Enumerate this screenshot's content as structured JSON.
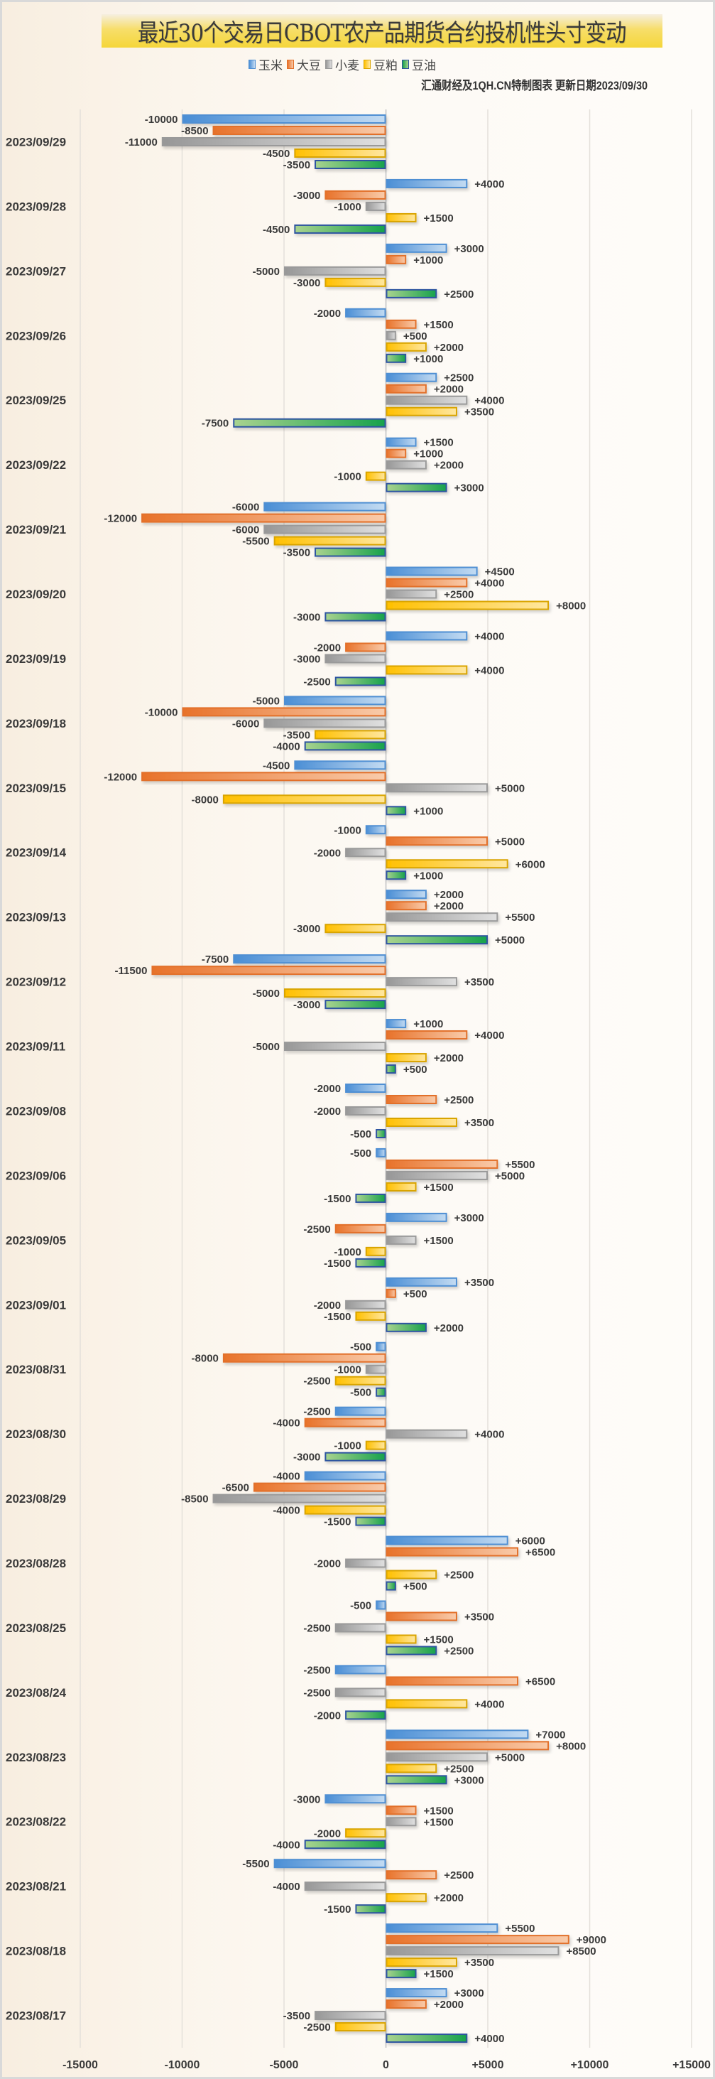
{
  "header": {
    "title": "最近30个交易日CBOT农产品期货合约投机性头寸变动",
    "subtitle": "汇通财经及1QH.CN特制图表 更新日期2023/09/30"
  },
  "legend": [
    {
      "name": "玉米",
      "icon": "blue-square-icon"
    },
    {
      "name": "大豆",
      "icon": "orange-square-icon"
    },
    {
      "name": "小麦",
      "icon": "gray-square-icon"
    },
    {
      "name": "豆粕",
      "icon": "yellow-square-icon"
    },
    {
      "name": "豆油",
      "icon": "green-square-icon"
    }
  ],
  "colors": {
    "玉米": {
      "dark": "#4a8ed5",
      "light": "#c3dbf2",
      "border": "#4f8fd3"
    },
    "大豆": {
      "dark": "#e8722a",
      "light": "#f9cbaa",
      "border": "#e2702a"
    },
    "小麦": {
      "dark": "#979797",
      "light": "#e0e0e0",
      "border": "#9a9a9a"
    },
    "豆粕": {
      "dark": "#ffc000",
      "light": "#ffe7a0",
      "border": "#d9a400"
    },
    "豆油": {
      "dark": "#17a24c",
      "light": "#a9d38f",
      "border": "#2f55a0"
    }
  },
  "chart_data": {
    "type": "bar",
    "orientation": "horizontal",
    "title": "最近30个交易日CBOT农产品期货合约投机性头寸变动",
    "subtitle": "汇通财经及1QH.CN特制图表 更新日期2023/09/30",
    "xlabel": "",
    "ylabel": "",
    "xlim": [
      -15000,
      15000
    ],
    "xticks": [
      -15000,
      -10000,
      -5000,
      0,
      5000,
      10000,
      15000
    ],
    "xtick_labels": [
      "-15000",
      "-10000",
      "-5000",
      "0",
      "+5000",
      "+10000",
      "+15000"
    ],
    "grid": true,
    "legend_position": "top-center",
    "categories": [
      "2023/09/29",
      "2023/09/28",
      "2023/09/27",
      "2023/09/26",
      "2023/09/25",
      "2023/09/22",
      "2023/09/21",
      "2023/09/20",
      "2023/09/19",
      "2023/09/18",
      "2023/09/15",
      "2023/09/14",
      "2023/09/13",
      "2023/09/12",
      "2023/09/11",
      "2023/09/08",
      "2023/09/06",
      "2023/09/05",
      "2023/09/01",
      "2023/08/31",
      "2023/08/30",
      "2023/08/29",
      "2023/08/28",
      "2023/08/25",
      "2023/08/24",
      "2023/08/23",
      "2023/08/22",
      "2023/08/21",
      "2023/08/18",
      "2023/08/17"
    ],
    "series": [
      {
        "name": "玉米",
        "values": [
          -10000,
          4000,
          3000,
          -2000,
          2500,
          1500,
          -6000,
          4500,
          4000,
          -5000,
          -4500,
          -1000,
          2000,
          -7500,
          1000,
          -2000,
          -500,
          3000,
          3500,
          -500,
          -2500,
          -4000,
          6000,
          -500,
          -2500,
          7000,
          -3000,
          -5500,
          5500,
          3000
        ]
      },
      {
        "name": "大豆",
        "values": [
          -8500,
          -3000,
          1000,
          1500,
          2000,
          1000,
          -12000,
          4000,
          -2000,
          -10000,
          -12000,
          5000,
          2000,
          -11500,
          4000,
          2500,
          5500,
          -2500,
          500,
          -8000,
          -4000,
          -6500,
          6500,
          3500,
          6500,
          8000,
          1500,
          2500,
          9000,
          2000
        ]
      },
      {
        "name": "小麦",
        "values": [
          -11000,
          -1000,
          -5000,
          500,
          4000,
          2000,
          -6000,
          2500,
          -3000,
          -6000,
          5000,
          -2000,
          5500,
          3500,
          -5000,
          -2000,
          5000,
          1500,
          -2000,
          -1000,
          4000,
          -8500,
          -2000,
          -2500,
          -2500,
          5000,
          1500,
          -4000,
          8500,
          -3500
        ]
      },
      {
        "name": "豆粕",
        "values": [
          -4500,
          1500,
          -3000,
          2000,
          3500,
          -1000,
          -5500,
          8000,
          4000,
          -3500,
          -8000,
          6000,
          -3000,
          -5000,
          2000,
          3500,
          1500,
          -1000,
          -1500,
          -2500,
          -1000,
          -4000,
          2500,
          1500,
          4000,
          2500,
          -2000,
          2000,
          3500,
          -2500
        ]
      },
      {
        "name": "豆油",
        "values": [
          -3500,
          -4500,
          2500,
          1000,
          -7500,
          3000,
          -3500,
          -3000,
          -2500,
          -4000,
          1000,
          1000,
          5000,
          -3000,
          500,
          -500,
          -1500,
          -1500,
          2000,
          -500,
          -3000,
          -1500,
          500,
          2500,
          -2000,
          3000,
          -4000,
          -1500,
          1500,
          4000
        ]
      }
    ]
  }
}
